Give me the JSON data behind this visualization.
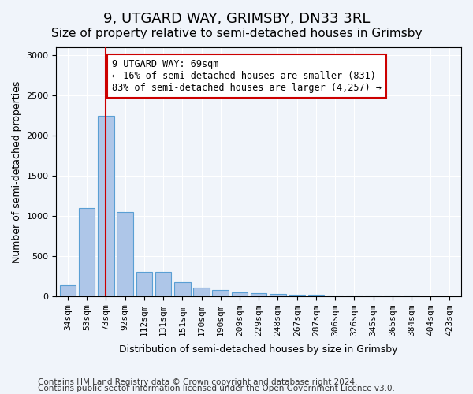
{
  "title": "9, UTGARD WAY, GRIMSBY, DN33 3RL",
  "subtitle": "Size of property relative to semi-detached houses in Grimsby",
  "xlabel": "Distribution of semi-detached houses by size in Grimsby",
  "ylabel": "Number of semi-detached properties",
  "categories": [
    "34sqm",
    "53sqm",
    "73sqm",
    "92sqm",
    "112sqm",
    "131sqm",
    "151sqm",
    "170sqm",
    "190sqm",
    "209sqm",
    "229sqm",
    "248sqm",
    "267sqm",
    "287sqm",
    "306sqm",
    "326sqm",
    "345sqm",
    "365sqm",
    "384sqm",
    "404sqm",
    "423sqm"
  ],
  "values": [
    130,
    1100,
    2250,
    1050,
    300,
    300,
    175,
    100,
    75,
    50,
    35,
    30,
    20,
    15,
    10,
    5,
    5,
    3,
    2,
    1,
    1
  ],
  "bar_color": "#aec6e8",
  "bar_edge_color": "#5a9fd4",
  "highlight_index": 2,
  "vline_x": 2,
  "vline_color": "#cc0000",
  "annotation_text": "9 UTGARD WAY: 69sqm\n← 16% of semi-detached houses are smaller (831)\n83% of semi-detached houses are larger (4,257) →",
  "annotation_box_color": "#ffffff",
  "annotation_box_edge": "#cc0000",
  "ylim": [
    0,
    3100
  ],
  "yticks": [
    0,
    500,
    1000,
    1500,
    2000,
    2500,
    3000
  ],
  "footer_line1": "Contains HM Land Registry data © Crown copyright and database right 2024.",
  "footer_line2": "Contains public sector information licensed under the Open Government Licence v3.0.",
  "bg_color": "#f0f4fa",
  "plot_bg_color": "#f0f4fa",
  "title_fontsize": 13,
  "subtitle_fontsize": 11,
  "axis_label_fontsize": 9,
  "tick_fontsize": 8,
  "annotation_fontsize": 8.5,
  "footer_fontsize": 7.5
}
